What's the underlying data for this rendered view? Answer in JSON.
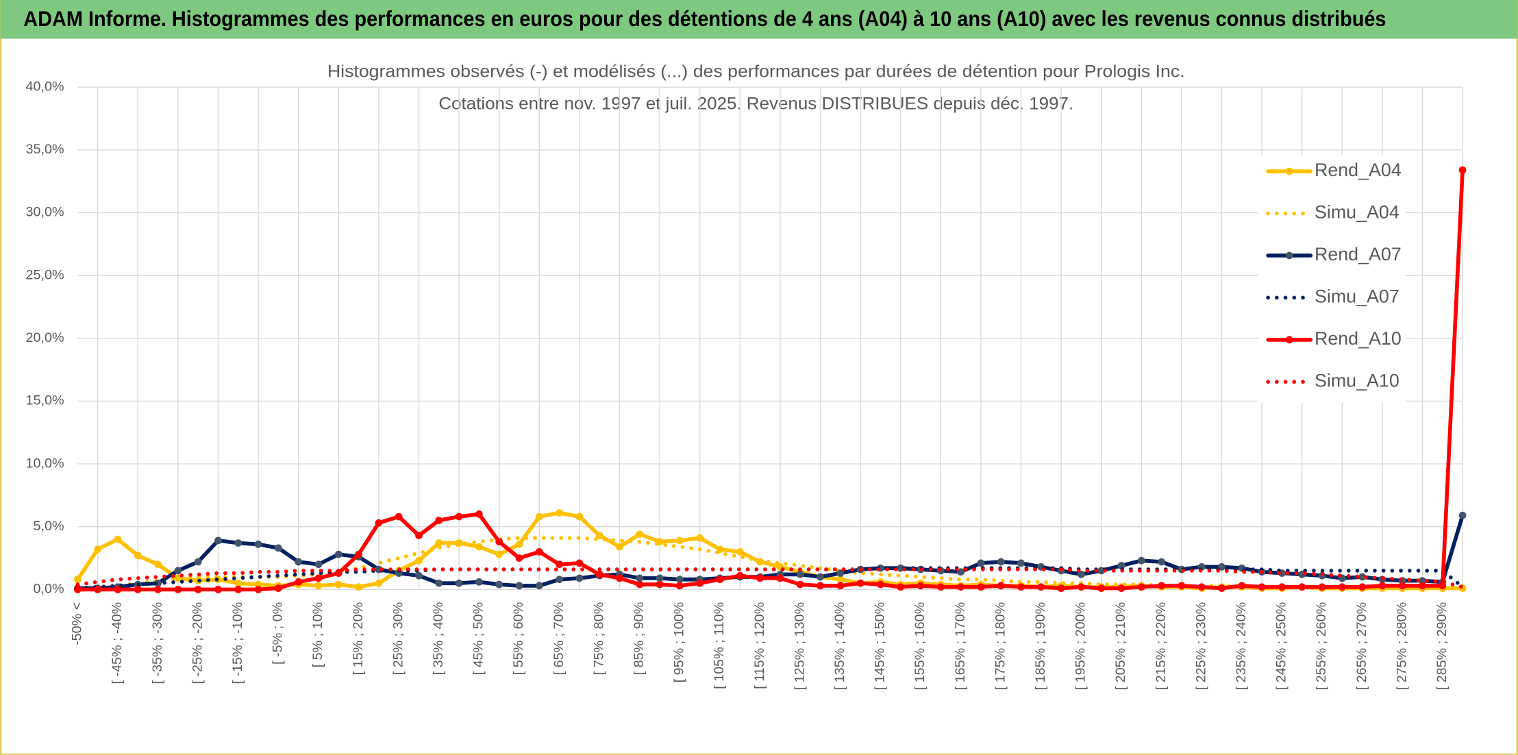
{
  "header": {
    "title": "ADAM Informe. Histogrammes des performances en euros pour des détentions de 4 ans (A04) à 10 ans (A10) avec les revenus connus distribués"
  },
  "chart_data": {
    "type": "line",
    "title": "Histogrammes observés (-) et modélisés (...) des performances par durées de détention pour Prologis Inc.",
    "subtitle": "Cotations entre nov. 1997 et juil. 2025. Revenus DISTRIBUES depuis déc. 1997.",
    "categories": [
      "-50% <",
      null,
      "[ -45% ; -40%",
      null,
      "[ -35% ; -30%",
      null,
      "[ -25% ; -20%",
      null,
      "[ -15% ; -10%",
      null,
      "[ -5% ; 0%",
      null,
      "[ 5% ; 10%",
      null,
      "[ 15% ; 20%",
      null,
      "[ 25% ; 30%",
      null,
      "[ 35% ; 40%",
      null,
      "[ 45% ; 50%",
      null,
      "[ 55% ; 60%",
      null,
      "[ 65% ; 70%",
      null,
      "[ 75% ; 80%",
      null,
      "[ 85% ; 90%",
      null,
      "[ 95% ; 100%",
      null,
      "[ 105% ; 110%",
      null,
      "[ 115% ; 120%",
      null,
      "[ 125% ; 130%",
      null,
      "[ 135% ; 140%",
      null,
      "[ 145% ; 150%",
      null,
      "[ 155% ; 160%",
      null,
      "[ 165% ; 170%",
      null,
      "[ 175% ; 180%",
      null,
      "[ 185% ; 190%",
      null,
      "[ 195% ; 200%",
      null,
      "[ 205% ; 210%",
      null,
      "[ 215% ; 220%",
      null,
      "[ 225% ; 230%",
      null,
      "[ 235% ; 240%",
      null,
      "[ 245% ; 250%",
      null,
      "[ 255% ; 260%",
      null,
      "[ 265% ; 270%",
      null,
      "[ 275% ; 280%",
      null,
      "[ 285% ; 290%",
      null
    ],
    "series": [
      {
        "name": "Rend_A04",
        "color": "#ffc000",
        "style": "solid",
        "markers": true,
        "values": [
          0.8,
          3.2,
          4.0,
          2.7,
          2.0,
          0.9,
          0.7,
          0.8,
          0.5,
          0.4,
          0.3,
          0.4,
          0.3,
          0.4,
          0.2,
          0.5,
          1.5,
          2.3,
          3.7,
          3.7,
          3.4,
          2.8,
          3.6,
          5.8,
          6.1,
          5.8,
          4.3,
          3.4,
          4.4,
          3.8,
          3.9,
          4.1,
          3.2,
          3.0,
          2.2,
          1.8,
          1.4,
          1.0,
          0.8,
          0.5,
          0.6,
          0.4,
          0.5,
          0.4,
          0.3,
          0.4,
          0.3,
          0.3,
          0.2,
          0.3,
          0.2,
          0.2,
          0.2,
          0.3,
          0.2,
          0.2,
          0.1,
          0.2,
          0.2,
          0.1,
          0.1,
          0.2,
          0.1,
          0.1,
          0.1,
          0.1,
          0.1,
          0.1,
          0.1,
          0.1
        ]
      },
      {
        "name": "Simu_A04",
        "color": "#ffc000",
        "style": "dotted",
        "markers": false,
        "values": [
          0.1,
          0.2,
          0.3,
          0.5,
          0.7,
          0.9,
          1.0,
          1.0,
          1.0,
          1.0,
          1.0,
          1.1,
          1.2,
          1.4,
          1.7,
          2.1,
          2.5,
          2.9,
          3.3,
          3.6,
          3.8,
          4.0,
          4.1,
          4.1,
          4.1,
          4.1,
          4.0,
          3.9,
          3.8,
          3.6,
          3.4,
          3.2,
          2.9,
          2.6,
          2.3,
          2.1,
          1.9,
          1.7,
          1.5,
          1.3,
          1.2,
          1.1,
          1.0,
          0.9,
          0.8,
          0.8,
          0.7,
          0.6,
          0.6,
          0.5,
          0.5,
          0.4,
          0.4,
          0.4,
          0.3,
          0.3,
          0.3,
          0.3,
          0.2,
          0.2,
          0.2,
          0.2,
          0.2,
          0.2,
          0.2,
          0.1,
          0.1,
          0.1,
          0.1,
          0.1
        ]
      },
      {
        "name": "Rend_A07",
        "color": "#002060",
        "marker_color": "#44546a",
        "style": "solid",
        "markers": true,
        "values": [
          0.1,
          0.1,
          0.2,
          0.4,
          0.5,
          1.5,
          2.2,
          3.9,
          3.7,
          3.6,
          3.3,
          2.2,
          2.0,
          2.8,
          2.6,
          1.6,
          1.3,
          1.1,
          0.5,
          0.5,
          0.6,
          0.4,
          0.3,
          0.3,
          0.8,
          0.9,
          1.1,
          1.2,
          0.9,
          0.9,
          0.8,
          0.8,
          0.9,
          1.0,
          1.0,
          1.2,
          1.2,
          1.0,
          1.3,
          1.6,
          1.7,
          1.7,
          1.6,
          1.5,
          1.4,
          2.1,
          2.2,
          2.1,
          1.8,
          1.5,
          1.2,
          1.5,
          1.9,
          2.3,
          2.2,
          1.6,
          1.8,
          1.8,
          1.7,
          1.4,
          1.3,
          1.2,
          1.1,
          0.9,
          1.0,
          0.8,
          0.7,
          0.7,
          0.6,
          5.9
        ]
      },
      {
        "name": "Simu_A07",
        "color": "#002060",
        "style": "dotted",
        "markers": false,
        "values": [
          0.1,
          0.2,
          0.3,
          0.4,
          0.5,
          0.6,
          0.7,
          0.8,
          0.9,
          1.0,
          1.1,
          1.2,
          1.3,
          1.4,
          1.4,
          1.5,
          1.5,
          1.5,
          1.6,
          1.6,
          1.6,
          1.6,
          1.6,
          1.6,
          1.6,
          1.6,
          1.6,
          1.6,
          1.6,
          1.6,
          1.6,
          1.6,
          1.6,
          1.6,
          1.6,
          1.6,
          1.6,
          1.6,
          1.6,
          1.6,
          1.7,
          1.7,
          1.7,
          1.7,
          1.7,
          1.7,
          1.7,
          1.7,
          1.7,
          1.7,
          1.6,
          1.6,
          1.6,
          1.6,
          1.6,
          1.6,
          1.6,
          1.6,
          1.6,
          1.6,
          1.5,
          1.5,
          1.5,
          1.5,
          1.5,
          1.5,
          1.5,
          1.5,
          1.5,
          0.2
        ]
      },
      {
        "name": "Rend_A10",
        "color": "#ff0000",
        "style": "solid",
        "markers": true,
        "values": [
          0,
          0,
          0,
          0,
          0,
          0,
          0,
          0,
          0,
          0,
          0.1,
          0.6,
          0.9,
          1.3,
          2.8,
          5.3,
          5.8,
          4.3,
          5.5,
          5.8,
          6.0,
          3.8,
          2.5,
          3.0,
          2.0,
          2.1,
          1.2,
          0.9,
          0.4,
          0.4,
          0.3,
          0.5,
          0.8,
          1.1,
          0.9,
          0.9,
          0.4,
          0.3,
          0.3,
          0.5,
          0.4,
          0.2,
          0.3,
          0.2,
          0.2,
          0.2,
          0.3,
          0.2,
          0.2,
          0.1,
          0.2,
          0.1,
          0.1,
          0.2,
          0.3,
          0.3,
          0.2,
          0.1,
          0.3,
          0.2,
          0.2,
          0.2,
          0.2,
          0.2,
          0.2,
          0.3,
          0.3,
          0.3,
          0.3,
          33.4
        ]
      },
      {
        "name": "Simu_A10",
        "color": "#ff0000",
        "style": "dotted",
        "markers": false,
        "values": [
          0.4,
          0.6,
          0.8,
          0.9,
          1.0,
          1.1,
          1.2,
          1.3,
          1.3,
          1.4,
          1.4,
          1.5,
          1.5,
          1.5,
          1.6,
          1.6,
          1.6,
          1.6,
          1.6,
          1.6,
          1.6,
          1.6,
          1.6,
          1.6,
          1.6,
          1.6,
          1.6,
          1.6,
          1.6,
          1.6,
          1.6,
          1.6,
          1.6,
          1.6,
          1.6,
          1.6,
          1.6,
          1.6,
          1.6,
          1.6,
          1.6,
          1.6,
          1.6,
          1.6,
          1.6,
          1.6,
          1.6,
          1.6,
          1.6,
          1.6,
          1.5,
          1.5,
          1.5,
          1.5,
          1.5,
          1.5,
          1.5,
          1.5,
          1.4,
          1.4,
          1.3,
          1.3,
          1.2,
          1.1,
          1.0,
          0.9,
          0.8,
          0.7,
          0.6,
          0.2
        ]
      }
    ],
    "ylim": [
      0,
      40
    ],
    "yticks": [
      {
        "value": 0,
        "label": "0,0%"
      },
      {
        "value": 5,
        "label": "5,0%"
      },
      {
        "value": 10,
        "label": "10,0%"
      },
      {
        "value": 15,
        "label": "15,0%"
      },
      {
        "value": 20,
        "label": "20,0%"
      },
      {
        "value": 25,
        "label": "25,0%"
      },
      {
        "value": 30,
        "label": "30,0%"
      },
      {
        "value": 35,
        "label": "35,0%"
      },
      {
        "value": 40,
        "label": "40,0%"
      }
    ],
    "grid": true,
    "legend": "right"
  }
}
